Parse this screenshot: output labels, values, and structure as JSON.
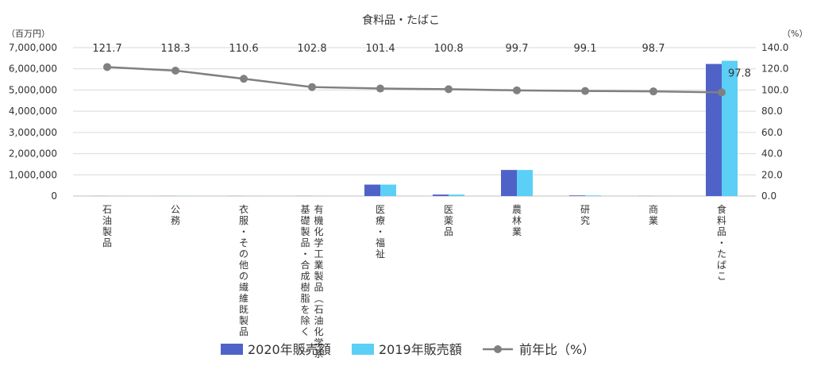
{
  "chart_data": {
    "type": "bar+line",
    "title": "食料品・たばこ",
    "left_unit": "（百万円）",
    "right_unit": "（%）",
    "categories": [
      "石油製品",
      "公務",
      "衣服・その他の繊維既製品",
      "有機化学工業製品（石油化学系基礎製品・合成樹脂を除く。）",
      "医療・福祉",
      "医薬品",
      "農林業",
      "研究",
      "商業",
      "食料品・たばこ"
    ],
    "series": [
      {
        "name": "2020年販売額",
        "kind": "bar",
        "axis": "left",
        "color": "#4F62C7",
        "values": [
          5000,
          5000,
          5000,
          5000,
          540000,
          70000,
          1230000,
          30000,
          5000,
          6230000
        ]
      },
      {
        "name": "2019年販売額",
        "kind": "bar",
        "axis": "left",
        "color": "#5BCFF5",
        "values": [
          5000,
          5000,
          5000,
          5000,
          540000,
          70000,
          1230000,
          30000,
          5000,
          6380000
        ]
      },
      {
        "name": "前年比（%）",
        "kind": "line",
        "axis": "right",
        "color": "#808080",
        "values": [
          121.7,
          118.3,
          110.6,
          102.8,
          101.4,
          100.8,
          99.7,
          99.1,
          98.7,
          97.8
        ]
      }
    ],
    "data_labels": [
      "121.7",
      "118.3",
      "110.6",
      "102.8",
      "101.4",
      "100.8",
      "99.7",
      "99.1",
      "98.7",
      "97.8"
    ],
    "y_left": {
      "min": 0,
      "max": 7000000,
      "ticks": [
        "0",
        "1,000,000",
        "2,000,000",
        "3,000,000",
        "4,000,000",
        "5,000,000",
        "6,000,000",
        "7,000,000"
      ]
    },
    "y_right": {
      "min": 0,
      "max": 140,
      "ticks": [
        "0.0",
        "20.0",
        "40.0",
        "60.0",
        "80.0",
        "100.0",
        "120.0",
        "140.0"
      ]
    },
    "grid": true,
    "legend_position": "bottom"
  }
}
